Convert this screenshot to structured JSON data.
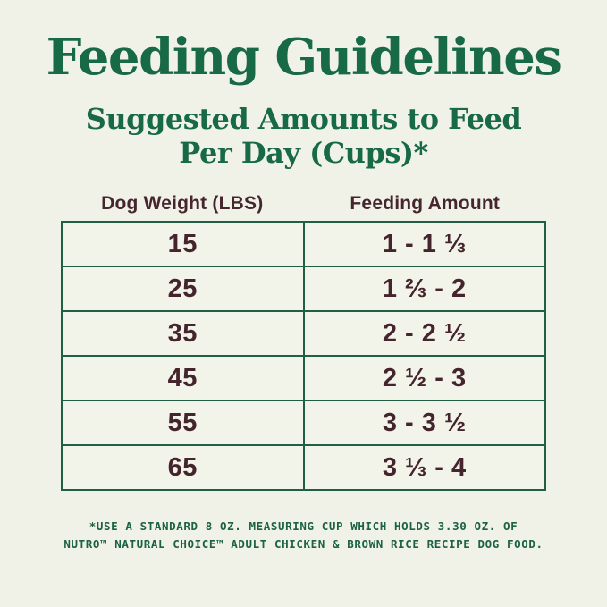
{
  "header": {
    "title": "Feeding Guidelines",
    "subtitle_line1": "Suggested Amounts to Feed",
    "subtitle_line2": "Per Day (Cups)*"
  },
  "table": {
    "columns": {
      "weight": "Dog Weight (LBS)",
      "amount": "Feeding Amount"
    },
    "rows": [
      {
        "weight": "15",
        "amount": "1 - 1 ⅓"
      },
      {
        "weight": "25",
        "amount": "1 ⅔ - 2"
      },
      {
        "weight": "35",
        "amount": "2 - 2 ½"
      },
      {
        "weight": "45",
        "amount": "2 ½ - 3"
      },
      {
        "weight": "55",
        "amount": "3 - 3 ½"
      },
      {
        "weight": "65",
        "amount": "3 ⅓ - 4"
      }
    ]
  },
  "footnote": {
    "line1": "*USE A STANDARD 8 OZ. MEASURING CUP WHICH HOLDS 3.30 OZ. OF",
    "line2": "NUTRO™ NATURAL CHOICE™ ADULT CHICKEN & BROWN RICE RECIPE DOG FOOD."
  },
  "colors": {
    "background": "#f0f2e8",
    "heading_green": "#186945",
    "table_border_green": "#215f44",
    "text_maroon": "#45252d",
    "footnote_green": "#1d6243"
  },
  "chart_data": {
    "type": "table",
    "title": "Feeding Guidelines",
    "subtitle": "Suggested Amounts to Feed Per Day (Cups)*",
    "columns": [
      "Dog Weight (LBS)",
      "Feeding Amount"
    ],
    "rows": [
      [
        "15",
        "1 - 1 ⅓"
      ],
      [
        "25",
        "1 ⅔ - 2"
      ],
      [
        "35",
        "2 - 2 ½"
      ],
      [
        "45",
        "2 ½ - 3"
      ],
      [
        "55",
        "3 - 3 ½"
      ],
      [
        "65",
        "3 ⅓ - 4"
      ]
    ],
    "footnote": "*USE A STANDARD 8 OZ. MEASURING CUP WHICH HOLDS 3.30 OZ. OF NUTRO™ NATURAL CHOICE™ ADULT CHICKEN & BROWN RICE RECIPE DOG FOOD."
  }
}
